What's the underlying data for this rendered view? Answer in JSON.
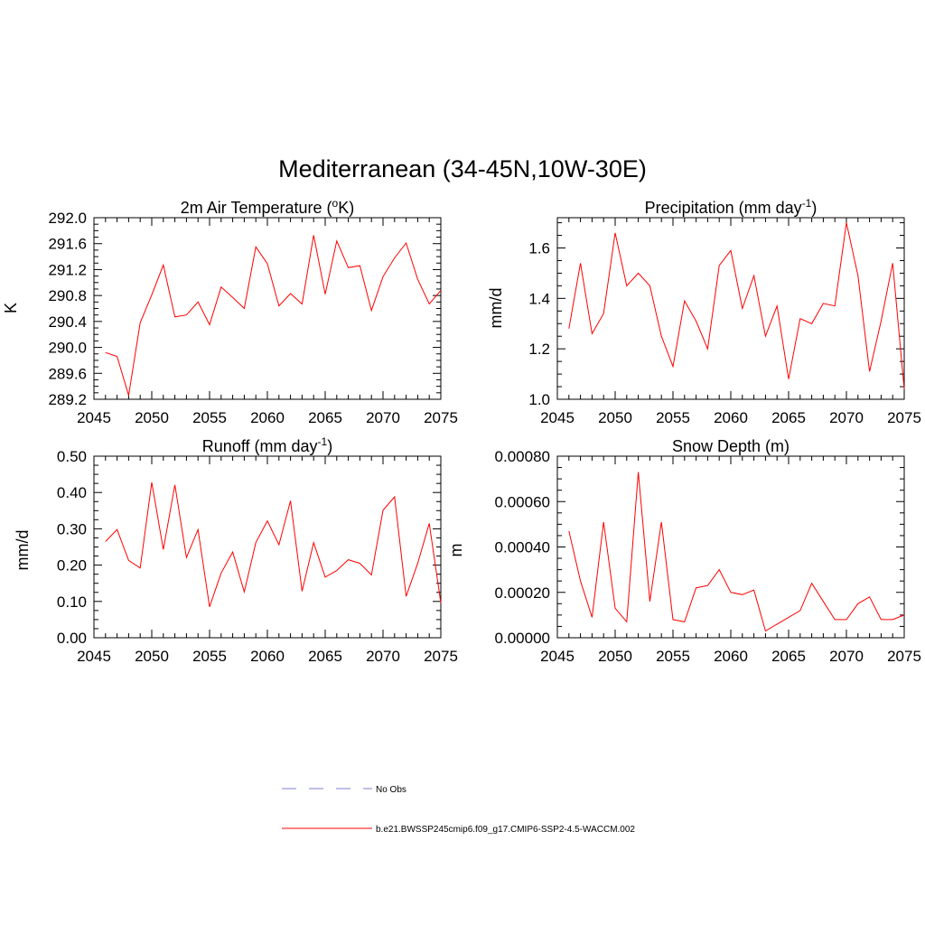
{
  "title": "Mediterranean (34-45N,10W-30E)",
  "line_color": "#ff0000",
  "obs_line_color": "#9999dd",
  "legend": {
    "entries": [
      {
        "label": "No Obs",
        "style": "dashed",
        "color": "#9999dd"
      },
      {
        "label": "b.e21.BWSSP245cmip6.f09_g17.CMIP6-SSP2-4.5-WACCM.002",
        "style": "solid",
        "color": "#ff0000"
      }
    ]
  },
  "chart_data": [
    {
      "type": "line",
      "title": "2m Air Temperature (",
      "title_sup": "o",
      "title_after": "K)",
      "ylabel": "K",
      "xlim": [
        2045,
        2075
      ],
      "ylim": [
        289.2,
        292.0
      ],
      "xticks": [
        2045,
        2050,
        2055,
        2060,
        2065,
        2070,
        2075
      ],
      "yticks": [
        "289.2",
        "289.6",
        "290.0",
        "290.4",
        "290.8",
        "291.2",
        "291.6",
        "292.0"
      ],
      "x": [
        2046,
        2047,
        2048,
        2049,
        2050,
        2051,
        2052,
        2053,
        2054,
        2055,
        2056,
        2057,
        2058,
        2059,
        2060,
        2061,
        2062,
        2063,
        2064,
        2065,
        2066,
        2067,
        2068,
        2069,
        2070,
        2071,
        2072,
        2073,
        2074,
        2075
      ],
      "y": [
        289.92,
        289.86,
        289.26,
        290.38,
        290.81,
        291.27,
        290.47,
        290.5,
        290.7,
        290.35,
        290.93,
        290.77,
        290.6,
        291.55,
        291.29,
        290.64,
        290.83,
        290.67,
        291.73,
        290.82,
        291.64,
        291.23,
        291.26,
        290.57,
        291.09,
        291.38,
        291.61,
        291.05,
        290.67,
        290.88
      ]
    },
    {
      "type": "line",
      "title": "Precipitation (mm day",
      "title_sup": "-1",
      "title_after": ")",
      "ylabel": "mm/d",
      "xlim": [
        2045,
        2075
      ],
      "ylim": [
        1.0,
        1.72
      ],
      "xticks": [
        2045,
        2050,
        2055,
        2060,
        2065,
        2070,
        2075
      ],
      "yticks": [
        "1.0",
        "1.2",
        "1.4",
        "1.6"
      ],
      "x": [
        2046,
        2047,
        2048,
        2049,
        2050,
        2051,
        2052,
        2053,
        2054,
        2055,
        2056,
        2057,
        2058,
        2059,
        2060,
        2061,
        2062,
        2063,
        2064,
        2065,
        2066,
        2067,
        2068,
        2069,
        2070,
        2071,
        2072,
        2073,
        2074,
        2075
      ],
      "y": [
        1.28,
        1.54,
        1.26,
        1.34,
        1.66,
        1.45,
        1.5,
        1.45,
        1.25,
        1.13,
        1.39,
        1.31,
        1.2,
        1.53,
        1.59,
        1.36,
        1.49,
        1.25,
        1.37,
        1.08,
        1.32,
        1.3,
        1.38,
        1.37,
        1.7,
        1.49,
        1.11,
        1.31,
        1.54,
        1.04
      ]
    },
    {
      "type": "line",
      "title": "Runoff (mm day",
      "title_sup": "-1",
      "title_after": ")",
      "ylabel": "mm/d",
      "xlim": [
        2045,
        2075
      ],
      "ylim": [
        0.0,
        0.5
      ],
      "xticks": [
        2045,
        2050,
        2055,
        2060,
        2065,
        2070,
        2075
      ],
      "yticks": [
        "0.00",
        "0.10",
        "0.20",
        "0.30",
        "0.40",
        "0.50"
      ],
      "x": [
        2046,
        2047,
        2048,
        2049,
        2050,
        2051,
        2052,
        2053,
        2054,
        2055,
        2056,
        2057,
        2058,
        2059,
        2060,
        2061,
        2062,
        2063,
        2064,
        2065,
        2066,
        2067,
        2068,
        2069,
        2070,
        2071,
        2072,
        2073,
        2074,
        2075
      ],
      "y": [
        0.265,
        0.298,
        0.213,
        0.192,
        0.428,
        0.243,
        0.421,
        0.221,
        0.298,
        0.085,
        0.178,
        0.236,
        0.126,
        0.262,
        0.322,
        0.256,
        0.377,
        0.128,
        0.262,
        0.167,
        0.185,
        0.215,
        0.205,
        0.173,
        0.351,
        0.388,
        0.114,
        0.205,
        0.315,
        0.096
      ]
    },
    {
      "type": "line",
      "title": "Snow Depth (m)",
      "title_sup": "",
      "title_after": "",
      "ylabel": "m",
      "xlim": [
        2045,
        2075
      ],
      "ylim": [
        0.0,
        0.0008
      ],
      "xticks": [
        2045,
        2050,
        2055,
        2060,
        2065,
        2070,
        2075
      ],
      "yticks": [
        "0.00000",
        "0.00020",
        "0.00040",
        "0.00060",
        "0.00080"
      ],
      "x": [
        2046,
        2047,
        2048,
        2049,
        2050,
        2051,
        2052,
        2053,
        2054,
        2055,
        2056,
        2057,
        2058,
        2059,
        2060,
        2061,
        2062,
        2063,
        2064,
        2065,
        2066,
        2067,
        2068,
        2069,
        2070,
        2071,
        2072,
        2073,
        2074,
        2075
      ],
      "y": [
        0.00047,
        0.00025,
        9e-05,
        0.00051,
        0.00013,
        7e-05,
        0.00073,
        0.00016,
        0.00051,
        8e-05,
        7e-05,
        0.00022,
        0.00023,
        0.0003,
        0.0002,
        0.00019,
        0.00021,
        3e-05,
        6e-05,
        9e-05,
        0.00012,
        0.00024,
        0.00016,
        8e-05,
        8e-05,
        0.00015,
        0.00018,
        8e-05,
        8e-05,
        0.0001
      ]
    }
  ]
}
